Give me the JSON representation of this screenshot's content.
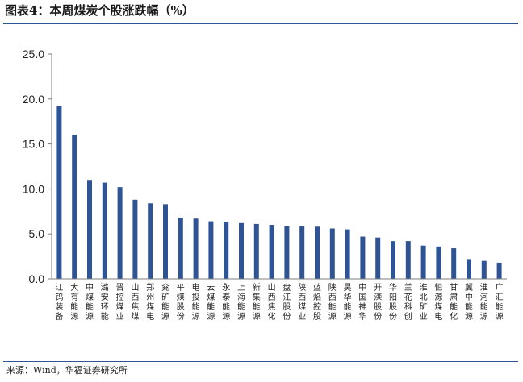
{
  "header": {
    "title": "图表4：本周煤炭个股涨跌幅（%）"
  },
  "footer": {
    "source": "来源：Wind，华福证券研究所"
  },
  "colors": {
    "bar": "#2f5496",
    "rule": "#2f5496",
    "axis": "#7f7f7f"
  },
  "chart_data": {
    "type": "bar",
    "title": "",
    "xlabel": "",
    "ylabel": "",
    "ylim": [
      0,
      25
    ],
    "yticks": [
      "0.0",
      "5.0",
      "10.0",
      "15.0",
      "20.0",
      "25.0"
    ],
    "grid": false,
    "categories": [
      "江钨装备",
      "大有能源",
      "中煤能源",
      "潞安环能",
      "晋控煤业",
      "山西焦煤",
      "郑州煤电",
      "兖矿能源",
      "平煤股份",
      "电投能源",
      "云煤能源",
      "永泰能源",
      "上海能源",
      "新集能源",
      "山西焦化",
      "盘江股份",
      "陕西煤业",
      "蓝焰控股",
      "陕西能源",
      "昊华能源",
      "中国神华",
      "开滦股份",
      "华阳股份",
      "兰花科创",
      "淮北矿业",
      "恒源煤电",
      "甘肃能化",
      "冀中能源",
      "淮河能源",
      "广汇能源"
    ],
    "values": [
      19.2,
      16.0,
      11.0,
      10.7,
      10.2,
      8.8,
      8.4,
      8.3,
      6.8,
      6.7,
      6.4,
      6.3,
      6.2,
      6.1,
      6.0,
      5.9,
      5.9,
      5.8,
      5.6,
      5.5,
      4.7,
      4.6,
      4.2,
      4.2,
      3.7,
      3.6,
      3.4,
      2.2,
      2.0,
      1.8
    ]
  }
}
